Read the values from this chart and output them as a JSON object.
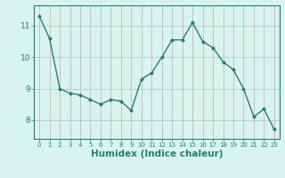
{
  "x": [
    0,
    1,
    2,
    3,
    4,
    5,
    6,
    7,
    8,
    9,
    10,
    11,
    12,
    13,
    14,
    15,
    16,
    17,
    18,
    19,
    20,
    21,
    22,
    23
  ],
  "y": [
    11.3,
    10.6,
    9.0,
    8.85,
    8.8,
    8.65,
    8.5,
    8.65,
    8.6,
    8.3,
    9.3,
    9.5,
    10.0,
    10.55,
    10.55,
    11.1,
    10.5,
    10.3,
    9.85,
    9.6,
    9.0,
    8.1,
    8.35,
    7.7
  ],
  "line_color": "#2a7d6e",
  "marker": "D",
  "markersize": 2.0,
  "linewidth": 1.0,
  "xlabel": "Humidex (Indice chaleur)",
  "xlabel_fontsize": 7.5,
  "bg_color": "#d8f4ef",
  "vgrid_color": "#c8a8a8",
  "hgrid_color": "#a8c8c4",
  "yticks": [
    8,
    9,
    10,
    11
  ],
  "xticks": [
    0,
    1,
    2,
    3,
    4,
    5,
    6,
    7,
    8,
    9,
    10,
    11,
    12,
    13,
    14,
    15,
    16,
    17,
    18,
    19,
    20,
    21,
    22,
    23
  ],
  "ylim": [
    7.4,
    11.65
  ],
  "xlim": [
    -0.5,
    23.5
  ],
  "xtick_fontsize": 5.0,
  "ytick_fontsize": 6.5
}
